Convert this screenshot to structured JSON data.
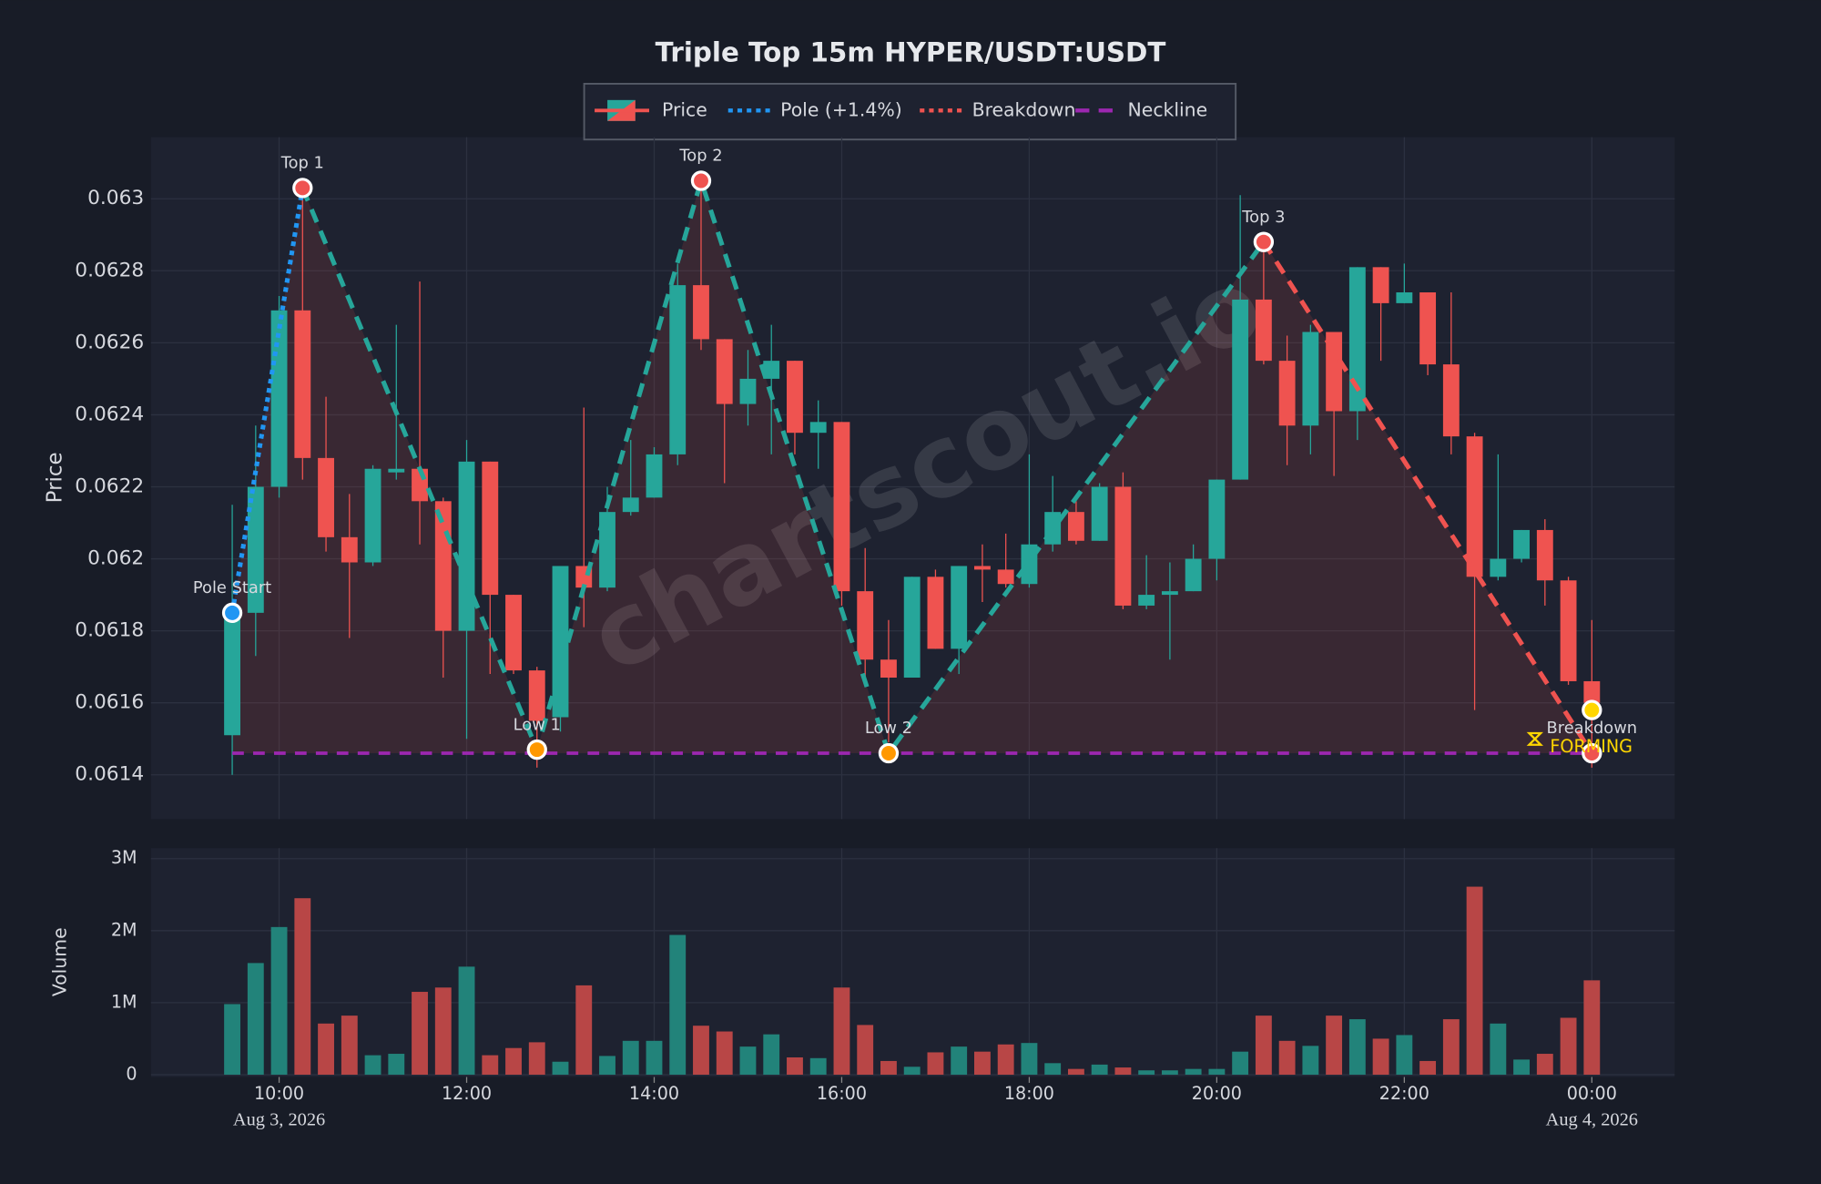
{
  "chart_data": [
    {
      "type": "candlestick",
      "title": "Triple Top 15m HYPER/USDT:USDT",
      "ylabel": "Price",
      "watermark": "chartscout.io",
      "x": [
        "2026-08-03 09:30",
        "2026-08-03 09:45",
        "2026-08-03 10:00",
        "2026-08-03 10:15",
        "2026-08-03 10:30",
        "2026-08-03 10:45",
        "2026-08-03 11:00",
        "2026-08-03 11:15",
        "2026-08-03 11:30",
        "2026-08-03 11:45",
        "2026-08-03 12:00",
        "2026-08-03 12:15",
        "2026-08-03 12:30",
        "2026-08-03 12:45",
        "2026-08-03 13:00",
        "2026-08-03 13:15",
        "2026-08-03 13:30",
        "2026-08-03 13:45",
        "2026-08-03 14:00",
        "2026-08-03 14:15",
        "2026-08-03 14:30",
        "2026-08-03 14:45",
        "2026-08-03 15:00",
        "2026-08-03 15:15",
        "2026-08-03 15:30",
        "2026-08-03 15:45",
        "2026-08-03 16:00",
        "2026-08-03 16:15",
        "2026-08-03 16:30",
        "2026-08-03 16:45",
        "2026-08-03 17:00",
        "2026-08-03 17:15",
        "2026-08-03 17:30",
        "2026-08-03 17:45",
        "2026-08-03 18:00",
        "2026-08-03 18:15",
        "2026-08-03 18:30",
        "2026-08-03 18:45",
        "2026-08-03 19:00",
        "2026-08-03 19:15",
        "2026-08-03 19:30",
        "2026-08-03 19:45",
        "2026-08-03 20:00",
        "2026-08-03 20:15",
        "2026-08-03 20:30",
        "2026-08-03 20:45",
        "2026-08-03 21:00",
        "2026-08-03 21:15",
        "2026-08-03 21:30",
        "2026-08-03 21:45",
        "2026-08-03 22:00",
        "2026-08-03 22:15",
        "2026-08-03 22:30",
        "2026-08-03 22:45",
        "2026-08-03 23:00",
        "2026-08-03 23:15",
        "2026-08-03 23:30",
        "2026-08-03 23:45",
        "2026-08-04 00:00"
      ],
      "open": [
        0.06151,
        0.06185,
        0.0622,
        0.06269,
        0.06228,
        0.06206,
        0.06199,
        0.06224,
        0.06225,
        0.06216,
        0.0618,
        0.06227,
        0.0619,
        0.06169,
        0.06156,
        0.06198,
        0.06192,
        0.06213,
        0.06217,
        0.06229,
        0.06276,
        0.06261,
        0.06243,
        0.0625,
        0.06255,
        0.06235,
        0.06238,
        0.06191,
        0.06172,
        0.06167,
        0.06195,
        0.06175,
        0.06198,
        0.06197,
        0.06193,
        0.06204,
        0.06213,
        0.06205,
        0.0622,
        0.06187,
        0.0619,
        0.06191,
        0.062,
        0.06222,
        0.06272,
        0.06255,
        0.06237,
        0.06263,
        0.06241,
        0.06281,
        0.06271,
        0.06274,
        0.06254,
        0.06234,
        0.06195,
        0.062,
        0.06208,
        0.06194,
        0.06166
      ],
      "high": [
        0.06215,
        0.06237,
        0.06273,
        0.06303,
        0.06245,
        0.06218,
        0.06226,
        0.06265,
        0.06277,
        0.06217,
        0.06233,
        0.06227,
        0.0619,
        0.0617,
        0.06198,
        0.06242,
        0.0622,
        0.06233,
        0.06231,
        0.06282,
        0.06305,
        0.06261,
        0.06258,
        0.06265,
        0.06255,
        0.06244,
        0.06238,
        0.06203,
        0.06183,
        0.06195,
        0.06197,
        0.06198,
        0.06204,
        0.06207,
        0.06229,
        0.06223,
        0.06216,
        0.06221,
        0.06224,
        0.06201,
        0.06199,
        0.06204,
        0.06222,
        0.06301,
        0.06287,
        0.06262,
        0.06265,
        0.06263,
        0.06281,
        0.06281,
        0.06282,
        0.06274,
        0.06274,
        0.06235,
        0.06229,
        0.06208,
        0.06211,
        0.06195,
        0.06183
      ],
      "low": [
        0.0614,
        0.06173,
        0.06217,
        0.06222,
        0.06202,
        0.06178,
        0.06198,
        0.06222,
        0.06204,
        0.06167,
        0.0615,
        0.06168,
        0.06168,
        0.06142,
        0.06152,
        0.06181,
        0.06191,
        0.06212,
        0.06217,
        0.06226,
        0.06258,
        0.06221,
        0.06237,
        0.06229,
        0.06229,
        0.06225,
        0.06187,
        0.06165,
        0.06149,
        0.06167,
        0.06175,
        0.06168,
        0.06188,
        0.06192,
        0.06192,
        0.06202,
        0.06204,
        0.06205,
        0.06186,
        0.06186,
        0.06172,
        0.06191,
        0.06194,
        0.06222,
        0.06254,
        0.06226,
        0.06229,
        0.06223,
        0.06233,
        0.06255,
        0.06271,
        0.06251,
        0.06229,
        0.06158,
        0.06194,
        0.06199,
        0.06187,
        0.06165,
        0.06142
      ],
      "close": [
        0.06185,
        0.0622,
        0.06269,
        0.06228,
        0.06206,
        0.06199,
        0.06225,
        0.06225,
        0.06216,
        0.0618,
        0.06227,
        0.0619,
        0.06169,
        0.06155,
        0.06198,
        0.06192,
        0.06213,
        0.06217,
        0.06229,
        0.06276,
        0.06261,
        0.06243,
        0.0625,
        0.06255,
        0.06235,
        0.06238,
        0.06191,
        0.06172,
        0.06167,
        0.06195,
        0.06175,
        0.06198,
        0.06197,
        0.06193,
        0.06204,
        0.06213,
        0.06205,
        0.0622,
        0.06187,
        0.0619,
        0.06191,
        0.062,
        0.06222,
        0.06272,
        0.06255,
        0.06237,
        0.06263,
        0.06241,
        0.06281,
        0.06271,
        0.06274,
        0.06254,
        0.06234,
        0.06195,
        0.062,
        0.06208,
        0.06194,
        0.06166,
        0.0616
      ],
      "up_color": "#26a69a",
      "down_color": "#ef5350",
      "price_legend": "Price",
      "xlim": [
        "2026-08-03 08:38",
        "2026-08-04 00:53"
      ],
      "ylim": [
        0.061277,
        0.063171
      ],
      "yticks": [
        0.0614,
        0.0616,
        0.0618,
        0.062,
        0.0622,
        0.0624,
        0.0626,
        0.0628,
        0.063
      ],
      "xticks": [
        {
          "value": "2026-08-03 10:00",
          "label": "10:00"
        },
        {
          "value": "2026-08-03 12:00",
          "label": "12:00"
        },
        {
          "value": "2026-08-03 14:00",
          "label": "14:00"
        },
        {
          "value": "2026-08-03 16:00",
          "label": "16:00"
        },
        {
          "value": "2026-08-03 18:00",
          "label": "18:00"
        },
        {
          "value": "2026-08-03 20:00",
          "label": "20:00"
        },
        {
          "value": "2026-08-03 22:00",
          "label": "22:00"
        },
        {
          "value": "2026-08-04 00:00",
          "label": "00:00"
        }
      ],
      "date_labels": [
        {
          "value": "2026-08-03 10:00",
          "label": "Aug 3, 2026"
        },
        {
          "value": "2026-08-04 00:00",
          "label": "Aug 4, 2026"
        }
      ],
      "grid": true,
      "pole": {
        "name": "Pole (+1.4%)",
        "color": "#2196f3",
        "x": [
          "2026-08-03 09:30",
          "2026-08-03 10:15"
        ],
        "y": [
          0.06185,
          0.06303
        ]
      },
      "legs": {
        "color": "#26a69a",
        "x": [
          "2026-08-03 10:15",
          "2026-08-03 12:45",
          "2026-08-03 14:30",
          "2026-08-03 16:30",
          "2026-08-03 20:30"
        ],
        "y": [
          0.06303,
          0.06147,
          0.06305,
          0.06146,
          0.06288
        ]
      },
      "breakdown": {
        "name": "Breakdown",
        "color": "#ef5350",
        "x": [
          "2026-08-03 20:30",
          "2026-08-04 00:00"
        ],
        "y": [
          0.06288,
          0.06146
        ]
      },
      "neckline": {
        "name": "Neckline",
        "color": "#9c27b0",
        "value": 0.06146
      },
      "markers": [
        {
          "label": "Pole Start",
          "x": "2026-08-03 09:30",
          "y": 0.06185,
          "color": "#2196f3"
        },
        {
          "label": "Top 1",
          "x": "2026-08-03 10:15",
          "y": 0.06303,
          "color": "#ef5350"
        },
        {
          "label": "Low 1",
          "x": "2026-08-03 12:45",
          "y": 0.06147,
          "color": "#ff9800"
        },
        {
          "label": "Top 2",
          "x": "2026-08-03 14:30",
          "y": 0.06305,
          "color": "#ef5350"
        },
        {
          "label": "Low 2",
          "x": "2026-08-03 16:30",
          "y": 0.06146,
          "color": "#ff9800"
        },
        {
          "label": "Top 3",
          "x": "2026-08-03 20:30",
          "y": 0.06288,
          "color": "#ef5350"
        },
        {
          "label": "Breakdown",
          "x": "2026-08-04 00:00",
          "y": 0.06146,
          "color": "#ef5350"
        },
        {
          "x": "2026-08-04 00:00",
          "y": 0.06158,
          "color": "#ffd600"
        }
      ],
      "status": "FORMING",
      "status_color": "#ffd600"
    },
    {
      "type": "bar",
      "ylabel": "Volume",
      "values": [
        980000,
        1550000,
        2050000,
        2450000,
        710000,
        820000,
        270000,
        290000,
        1150000,
        1210000,
        1500000,
        270000,
        370000,
        450000,
        180000,
        1240000,
        260000,
        470000,
        470000,
        1940000,
        680000,
        600000,
        390000,
        560000,
        240000,
        230000,
        1210000,
        690000,
        190000,
        110000,
        310000,
        390000,
        320000,
        420000,
        440000,
        160000,
        80000,
        140000,
        100000,
        60000,
        60000,
        80000,
        80000,
        320000,
        820000,
        470000,
        400000,
        820000,
        770000,
        500000,
        550000,
        190000,
        770000,
        2610000,
        710000,
        210000,
        290000,
        790000,
        1310000
      ],
      "up_color": "#22837a",
      "down_color": "#b84646",
      "ylim": [
        0,
        3145000
      ],
      "yticks": [
        0,
        {
          "value": 1000000,
          "label": "1M"
        },
        {
          "value": 2000000,
          "label": "2M"
        },
        {
          "value": 3000000,
          "label": "3M"
        }
      ],
      "grid": true
    }
  ]
}
